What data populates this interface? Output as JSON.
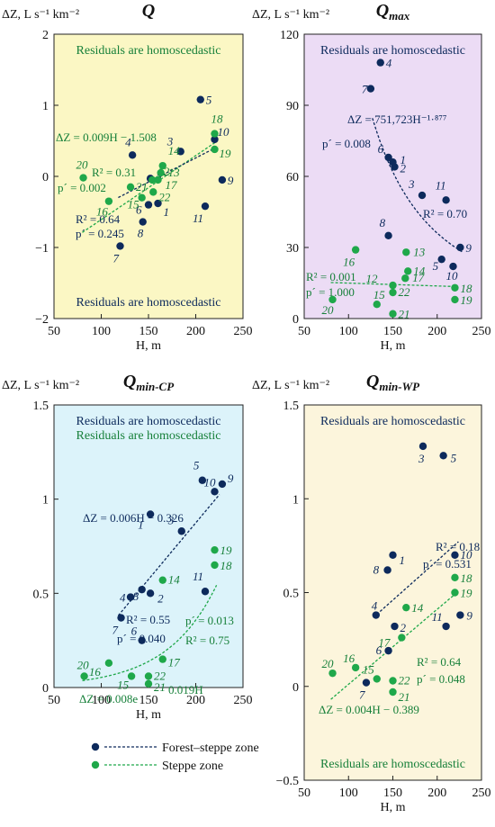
{
  "colors": {
    "forest": "#0d2a5c",
    "steppe": "#1fa84a",
    "steppe_text": "#17803a"
  },
  "legend": [
    {
      "label": "Forest–steppe zone",
      "color": "#0d2a5c"
    },
    {
      "label": "Steppe zone",
      "color": "#1fa84a"
    }
  ],
  "chart_data": [
    {
      "id": "Q",
      "type": "scatter",
      "title": "Q",
      "subscript": "",
      "ylabel": "ΔZ, L s⁻¹ km⁻²",
      "xlabel": "H, m",
      "xlim": [
        50,
        250
      ],
      "ylim": [
        -2,
        2
      ],
      "xticks": [
        50,
        100,
        150,
        200,
        250
      ],
      "yticks": [
        -2,
        -1,
        0,
        1,
        2
      ],
      "background": "#fbf7c4",
      "notes": [
        {
          "text": "Residuals are homoscedastic",
          "color": "#17803a",
          "pos": "top"
        },
        {
          "text": "Residuals are homoscedastic",
          "color": "#0d2a5c",
          "pos": "bottom"
        }
      ],
      "series": [
        {
          "group": "forest",
          "points": [
            {
              "id": "1",
              "x": 160,
              "y": -0.38
            },
            {
              "id": "2",
              "x": 152,
              "y": -0.03
            },
            {
              "id": "3",
              "x": 184,
              "y": 0.35
            },
            {
              "id": "4",
              "x": 133,
              "y": 0.3
            },
            {
              "id": "5",
              "x": 205,
              "y": 1.08
            },
            {
              "id": "6",
              "x": 150,
              "y": -0.4
            },
            {
              "id": "7",
              "x": 120,
              "y": -0.98
            },
            {
              "id": "8",
              "x": 144,
              "y": -0.64
            },
            {
              "id": "9",
              "x": 228,
              "y": -0.05
            },
            {
              "id": "10",
              "x": 220,
              "y": 0.52
            },
            {
              "id": "11",
              "x": 210,
              "y": -0.42
            }
          ]
        },
        {
          "group": "steppe",
          "points": [
            {
              "id": "12",
              "x": 154,
              "y": -0.05
            },
            {
              "id": "13",
              "x": 163,
              "y": 0.05
            },
            {
              "id": "14",
              "x": 165,
              "y": 0.15
            },
            {
              "id": "15",
              "x": 143,
              "y": -0.3
            },
            {
              "id": "16",
              "x": 108,
              "y": -0.35
            },
            {
              "id": "17",
              "x": 160,
              "y": -0.05
            },
            {
              "id": "18",
              "x": 220,
              "y": 0.6
            },
            {
              "id": "19",
              "x": 220,
              "y": 0.38
            },
            {
              "id": "20",
              "x": 81,
              "y": -0.02
            },
            {
              "id": "21",
              "x": 131,
              "y": -0.15
            },
            {
              "id": "22",
              "x": 155,
              "y": -0.22
            }
          ]
        }
      ],
      "stats": [
        {
          "text": "ΔZ = 0.009H − 1.508",
          "color": "#17803a"
        },
        {
          "text": "R² = 0.31",
          "color": "#17803a"
        },
        {
          "text": "p´ = 0.002",
          "color": "#17803a"
        },
        {
          "text": "R² = 0.64",
          "color": "#0d2a5c"
        },
        {
          "text": "p´ = 0.245",
          "color": "#0d2a5c"
        }
      ]
    },
    {
      "id": "Qmax",
      "type": "scatter",
      "title": "Q",
      "subscript": "max",
      "ylabel": "ΔZ, L s⁻¹ km⁻²",
      "xlabel": "H, m",
      "xlim": [
        50,
        250
      ],
      "ylim": [
        0,
        120
      ],
      "xticks": [
        50,
        100,
        150,
        200,
        250
      ],
      "yticks": [
        0,
        30,
        60,
        90,
        120
      ],
      "background": "#ecdcf5",
      "notes": [
        {
          "text": "Residuals are homoscedastic",
          "color": "#0d2a5c",
          "pos": "top"
        }
      ],
      "series": [
        {
          "group": "forest",
          "points": [
            {
              "id": "1",
              "x": 150,
              "y": 66
            },
            {
              "id": "2",
              "x": 152,
              "y": 64
            },
            {
              "id": "3",
              "x": 183,
              "y": 52
            },
            {
              "id": "4",
              "x": 136,
              "y": 108
            },
            {
              "id": "5",
              "x": 205,
              "y": 25
            },
            {
              "id": "6",
              "x": 145,
              "y": 68
            },
            {
              "id": "7",
              "x": 125,
              "y": 97
            },
            {
              "id": "8",
              "x": 145,
              "y": 35
            },
            {
              "id": "9",
              "x": 226,
              "y": 30
            },
            {
              "id": "10",
              "x": 218,
              "y": 22
            },
            {
              "id": "11",
              "x": 210,
              "y": 50
            }
          ]
        },
        {
          "group": "steppe",
          "points": [
            {
              "id": "12",
              "x": 150,
              "y": 14
            },
            {
              "id": "14",
              "x": 167,
              "y": 20
            },
            {
              "id": "15",
              "x": 132,
              "y": 6
            },
            {
              "id": "16",
              "x": 108,
              "y": 29
            },
            {
              "id": "17",
              "x": 164,
              "y": 17
            },
            {
              "id": "18",
              "x": 220,
              "y": 13
            },
            {
              "id": "19",
              "x": 220,
              "y": 8
            },
            {
              "id": "20",
              "x": 82,
              "y": 8
            },
            {
              "id": "21",
              "x": 150,
              "y": 2
            },
            {
              "id": "22",
              "x": 150,
              "y": 11
            },
            {
              "id": "13",
              "x": 165,
              "y": 28
            }
          ]
        }
      ],
      "stats": [
        {
          "text": "ΔZ = 751,723H⁻¹·⁸⁷⁷",
          "color": "#0d2a5c"
        },
        {
          "text": "p´ = 0.008",
          "color": "#0d2a5c"
        },
        {
          "text": "R² = 0.70",
          "color": "#0d2a5c"
        },
        {
          "text": "R² = 0.001",
          "color": "#17803a"
        },
        {
          "text": "p´ = 1.000",
          "color": "#17803a"
        }
      ]
    },
    {
      "id": "QminCP",
      "type": "scatter",
      "title": "Q",
      "subscript": "min-CP",
      "ylabel": "ΔZ, L s⁻¹ km⁻²",
      "xlabel": "H, m",
      "xlim": [
        50,
        250
      ],
      "ylim": [
        0,
        1.5
      ],
      "xticks": [
        50,
        100,
        150,
        200,
        250
      ],
      "yticks": [
        0,
        0.5,
        1,
        1.5
      ],
      "background": "#dcf3fa",
      "notes": [
        {
          "text": "Residuals are homoscedastic",
          "color": "#0d2a5c",
          "pos": "top"
        },
        {
          "text": "Residuals are homoscedastic",
          "color": "#17803a",
          "pos": "top2"
        }
      ],
      "series": [
        {
          "group": "forest",
          "points": [
            {
              "id": "1",
              "x": 152,
              "y": 0.92
            },
            {
              "id": "2",
              "x": 152,
              "y": 0.5
            },
            {
              "id": "3",
              "x": 185,
              "y": 0.83
            },
            {
              "id": "4",
              "x": 131,
              "y": 0.48
            },
            {
              "id": "5",
              "x": 207,
              "y": 1.1
            },
            {
              "id": "6",
              "x": 143,
              "y": 0.25
            },
            {
              "id": "7",
              "x": 121,
              "y": 0.37
            },
            {
              "id": "8",
              "x": 143,
              "y": 0.52
            },
            {
              "id": "9",
              "x": 228,
              "y": 1.08
            },
            {
              "id": "10",
              "x": 220,
              "y": 1.04
            },
            {
              "id": "11",
              "x": 210,
              "y": 0.51
            }
          ]
        },
        {
          "group": "steppe",
          "points": [
            {
              "id": "14",
              "x": 165,
              "y": 0.57
            },
            {
              "id": "15",
              "x": 132,
              "y": 0.06
            },
            {
              "id": "16",
              "x": 108,
              "y": 0.13
            },
            {
              "id": "17",
              "x": 165,
              "y": 0.15
            },
            {
              "id": "18",
              "x": 220,
              "y": 0.65
            },
            {
              "id": "19",
              "x": 220,
              "y": 0.73
            },
            {
              "id": "20",
              "x": 82,
              "y": 0.06
            },
            {
              "id": "21",
              "x": 150,
              "y": 0.02
            },
            {
              "id": "22",
              "x": 150,
              "y": 0.06
            }
          ]
        }
      ],
      "stats": [
        {
          "text": "ΔZ = 0.006H − 0.326",
          "color": "#0d2a5c"
        },
        {
          "text": "R² = 0.55",
          "color": "#0d2a5c"
        },
        {
          "text": "p´ = 0.040",
          "color": "#0d2a5c"
        },
        {
          "text": "p´ = 0.013",
          "color": "#17803a"
        },
        {
          "text": "R² = 0.75",
          "color": "#17803a"
        },
        {
          "text": "ΔZ = 0.008e",
          "color": "#17803a"
        },
        {
          "text": "0.019H",
          "color": "#17803a"
        }
      ]
    },
    {
      "id": "QminWP",
      "type": "scatter",
      "title": "Q",
      "subscript": "min-WP",
      "ylabel": "ΔZ, L s⁻¹ km⁻²",
      "xlabel": "H, m",
      "xlim": [
        50,
        250
      ],
      "ylim": [
        -0.5,
        1.5
      ],
      "xticks": [
        50,
        100,
        150,
        200,
        250
      ],
      "yticks": [
        -0.5,
        0,
        0.5,
        1,
        1.5
      ],
      "background": "#fcf5dc",
      "notes": [
        {
          "text": "Residuals are homoscedastic",
          "color": "#0d2a5c",
          "pos": "top"
        },
        {
          "text": "Residuals are homoscedastic",
          "color": "#17803a",
          "pos": "bottom"
        }
      ],
      "series": [
        {
          "group": "forest",
          "points": [
            {
              "id": "1",
              "x": 150,
              "y": 0.7
            },
            {
              "id": "2",
              "x": 152,
              "y": 0.32
            },
            {
              "id": "3",
              "x": 184,
              "y": 1.28
            },
            {
              "id": "4",
              "x": 131,
              "y": 0.38
            },
            {
              "id": "5",
              "x": 207,
              "y": 1.23
            },
            {
              "id": "6",
              "x": 145,
              "y": 0.19
            },
            {
              "id": "7",
              "x": 120,
              "y": 0.02
            },
            {
              "id": "8",
              "x": 144,
              "y": 0.62
            },
            {
              "id": "9",
              "x": 226,
              "y": 0.38
            },
            {
              "id": "10",
              "x": 220,
              "y": 0.7
            },
            {
              "id": "11",
              "x": 210,
              "y": 0.32
            }
          ]
        },
        {
          "group": "steppe",
          "points": [
            {
              "id": "14",
              "x": 165,
              "y": 0.42
            },
            {
              "id": "15",
              "x": 132,
              "y": 0.04
            },
            {
              "id": "16",
              "x": 108,
              "y": 0.1
            },
            {
              "id": "17",
              "x": 160,
              "y": 0.26
            },
            {
              "id": "18",
              "x": 220,
              "y": 0.58
            },
            {
              "id": "19",
              "x": 220,
              "y": 0.5
            },
            {
              "id": "20",
              "x": 82,
              "y": 0.07
            },
            {
              "id": "21",
              "x": 150,
              "y": -0.03
            },
            {
              "id": "22",
              "x": 150,
              "y": 0.03
            }
          ]
        }
      ],
      "stats": [
        {
          "text": "R² = 0.18",
          "color": "#0d2a5c"
        },
        {
          "text": "p´ = 0.531",
          "color": "#0d2a5c"
        },
        {
          "text": "R² = 0.64",
          "color": "#17803a"
        },
        {
          "text": "p´ = 0.048",
          "color": "#17803a"
        },
        {
          "text": "ΔZ = 0.004H − 0.389",
          "color": "#17803a"
        }
      ]
    }
  ]
}
